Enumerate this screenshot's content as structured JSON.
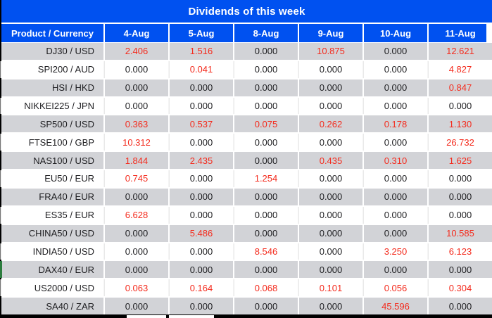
{
  "title": "Dividends of this week",
  "columns": [
    "Product / Currency",
    "4-Aug",
    "5-Aug",
    "8-Aug",
    "9-Aug",
    "10-Aug",
    "11-Aug"
  ],
  "rows": [
    {
      "product": "DJ30 / USD",
      "values": [
        "2.406",
        "1.516",
        "0.000",
        "10.875",
        "0.000",
        "12.621"
      ]
    },
    {
      "product": "SPI200 / AUD",
      "values": [
        "0.000",
        "0.041",
        "0.000",
        "0.000",
        "0.000",
        "4.827"
      ]
    },
    {
      "product": "HSI / HKD",
      "values": [
        "0.000",
        "0.000",
        "0.000",
        "0.000",
        "0.000",
        "0.847"
      ]
    },
    {
      "product": "NIKKEI225 / JPN",
      "values": [
        "0.000",
        "0.000",
        "0.000",
        "0.000",
        "0.000",
        "0.000"
      ]
    },
    {
      "product": "SP500 / USD",
      "values": [
        "0.363",
        "0.537",
        "0.075",
        "0.262",
        "0.178",
        "1.130"
      ]
    },
    {
      "product": "FTSE100 / GBP",
      "values": [
        "10.312",
        "0.000",
        "0.000",
        "0.000",
        "0.000",
        "26.732"
      ]
    },
    {
      "product": "NAS100 / USD",
      "values": [
        "1.844",
        "2.435",
        "0.000",
        "0.435",
        "0.310",
        "1.625"
      ]
    },
    {
      "product": "EU50 / EUR",
      "values": [
        "0.745",
        "0.000",
        "1.254",
        "0.000",
        "0.000",
        "0.000"
      ]
    },
    {
      "product": "FRA40 / EUR",
      "values": [
        "0.000",
        "0.000",
        "0.000",
        "0.000",
        "0.000",
        "0.000"
      ]
    },
    {
      "product": "ES35 / EUR",
      "values": [
        "6.628",
        "0.000",
        "0.000",
        "0.000",
        "0.000",
        "0.000"
      ]
    },
    {
      "product": "CHINA50 / USD",
      "values": [
        "0.000",
        "5.486",
        "0.000",
        "0.000",
        "0.000",
        "10.585"
      ]
    },
    {
      "product": "INDIA50 / USD",
      "values": [
        "0.000",
        "0.000",
        "8.546",
        "0.000",
        "3.250",
        "6.123"
      ]
    },
    {
      "product": "DAX40 / EUR",
      "values": [
        "0.000",
        "0.000",
        "0.000",
        "0.000",
        "0.000",
        "0.000"
      ]
    },
    {
      "product": "US2000 / USD",
      "values": [
        "0.063",
        "0.164",
        "0.068",
        "0.101",
        "0.056",
        "0.304"
      ]
    },
    {
      "product": "SA40 / ZAR",
      "values": [
        "0.000",
        "0.000",
        "0.000",
        "0.000",
        "45.596",
        "0.000"
      ]
    }
  ],
  "colors": {
    "header_blue": "#0051f0",
    "row_gray": "#d2d3d7",
    "nonzero_red": "#f42b1d",
    "zero_text": "#1d1d20"
  }
}
